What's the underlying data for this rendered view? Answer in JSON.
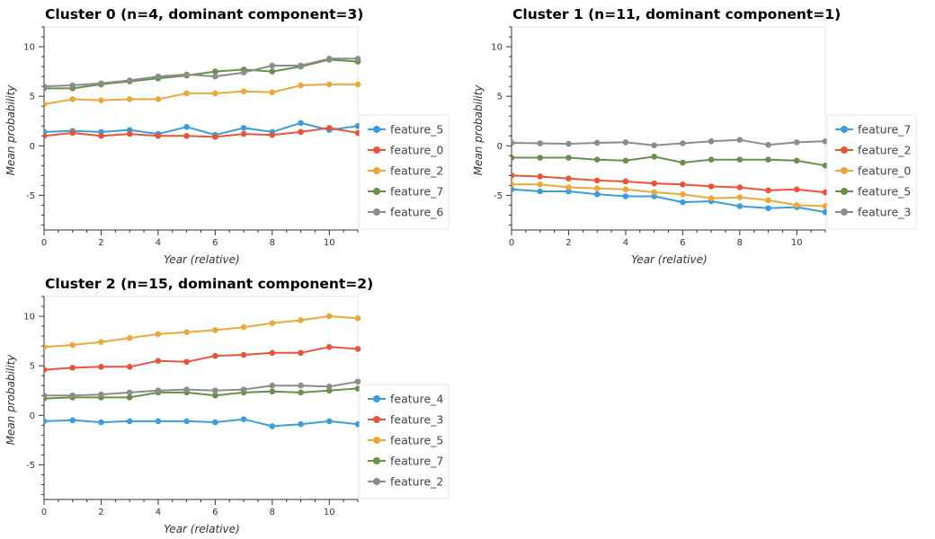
{
  "axis": {
    "xlabel": "Year (relative)",
    "ylabel": "Mean probability"
  },
  "colors": {
    "feature_0": "#e8543a",
    "feature_2": "#e9a93b",
    "feature_3": "#e8543a",
    "feature_4": "#3a9fd8",
    "feature_5": "#3a9fd8",
    "feature_6": "#8c8c8c",
    "feature_7": "#68904a"
  },
  "chart_data": [
    {
      "type": "line",
      "title": "Cluster 0  (n=4, dominant component=3)",
      "xlabel": "Year (relative)",
      "ylabel": "Mean probability",
      "xlim": [
        0,
        11
      ],
      "ylim": [
        -8.5,
        12
      ],
      "x_ticks": [
        0,
        2,
        4,
        6,
        8,
        10
      ],
      "y_ticks": [
        -5,
        0,
        5,
        10
      ],
      "x": [
        0,
        1,
        2,
        3,
        4,
        5,
        6,
        7,
        8,
        9,
        10,
        11
      ],
      "legend_position": "right",
      "series": [
        {
          "name": "feature_5",
          "color": "#3a9fd8",
          "values": [
            1.4,
            1.5,
            1.4,
            1.6,
            1.2,
            1.9,
            1.1,
            1.8,
            1.4,
            2.3,
            1.6,
            2.0
          ]
        },
        {
          "name": "feature_0",
          "color": "#e8543a",
          "values": [
            1.0,
            1.3,
            1.0,
            1.2,
            1.0,
            1.0,
            0.9,
            1.2,
            1.1,
            1.4,
            1.8,
            1.3
          ]
        },
        {
          "name": "feature_2",
          "color": "#e9a93b",
          "values": [
            4.2,
            4.7,
            4.6,
            4.7,
            4.7,
            5.3,
            5.3,
            5.5,
            5.4,
            6.1,
            6.2,
            6.2
          ]
        },
        {
          "name": "feature_7",
          "color": "#68904a",
          "values": [
            5.8,
            5.8,
            6.2,
            6.5,
            6.8,
            7.1,
            7.5,
            7.7,
            7.5,
            8.0,
            8.7,
            8.5
          ]
        },
        {
          "name": "feature_6",
          "color": "#8c8c8c",
          "values": [
            6.0,
            6.1,
            6.3,
            6.6,
            7.0,
            7.2,
            7.0,
            7.4,
            8.1,
            8.1,
            8.8,
            8.8
          ]
        }
      ]
    },
    {
      "type": "line",
      "title": "Cluster 1  (n=11, dominant component=1)",
      "xlabel": "Year (relative)",
      "ylabel": "Mean probability",
      "xlim": [
        0,
        11
      ],
      "ylim": [
        -8.5,
        12
      ],
      "x_ticks": [
        0,
        2,
        4,
        6,
        8,
        10
      ],
      "y_ticks": [
        -5,
        0,
        5,
        10
      ],
      "x": [
        0,
        1,
        2,
        3,
        4,
        5,
        6,
        7,
        8,
        9,
        10,
        11
      ],
      "legend_position": "right",
      "series": [
        {
          "name": "feature_7",
          "color": "#3a9fd8",
          "values": [
            -4.4,
            -4.6,
            -4.6,
            -4.9,
            -5.1,
            -5.1,
            -5.7,
            -5.6,
            -6.1,
            -6.3,
            -6.2,
            -6.7
          ]
        },
        {
          "name": "feature_2",
          "color": "#e8543a",
          "values": [
            -3.0,
            -3.1,
            -3.3,
            -3.5,
            -3.6,
            -3.8,
            -3.9,
            -4.1,
            -4.2,
            -4.5,
            -4.4,
            -4.7
          ]
        },
        {
          "name": "feature_0",
          "color": "#e9a93b",
          "values": [
            -3.9,
            -3.9,
            -4.2,
            -4.3,
            -4.4,
            -4.7,
            -4.9,
            -5.3,
            -5.2,
            -5.5,
            -6.0,
            -6.1
          ]
        },
        {
          "name": "feature_5",
          "color": "#68904a",
          "values": [
            -1.2,
            -1.2,
            -1.2,
            -1.4,
            -1.5,
            -1.1,
            -1.7,
            -1.4,
            -1.4,
            -1.4,
            -1.5,
            -2.0
          ]
        },
        {
          "name": "feature_3",
          "color": "#8c8c8c",
          "values": [
            0.3,
            0.25,
            0.2,
            0.3,
            0.35,
            0.05,
            0.25,
            0.45,
            0.6,
            0.1,
            0.35,
            0.45
          ]
        }
      ]
    },
    {
      "type": "line",
      "title": "Cluster 2  (n=15, dominant component=2)",
      "xlabel": "Year (relative)",
      "ylabel": "Mean probability",
      "xlim": [
        0,
        11
      ],
      "ylim": [
        -8.5,
        12
      ],
      "x_ticks": [
        0,
        2,
        4,
        6,
        8,
        10
      ],
      "y_ticks": [
        -5,
        0,
        5,
        10
      ],
      "x": [
        0,
        1,
        2,
        3,
        4,
        5,
        6,
        7,
        8,
        9,
        10,
        11
      ],
      "legend_position": "right",
      "series": [
        {
          "name": "feature_4",
          "color": "#3a9fd8",
          "values": [
            -0.6,
            -0.5,
            -0.7,
            -0.6,
            -0.6,
            -0.6,
            -0.7,
            -0.4,
            -1.1,
            -0.9,
            -0.6,
            -0.9
          ]
        },
        {
          "name": "feature_3",
          "color": "#e8543a",
          "values": [
            4.6,
            4.8,
            4.9,
            4.9,
            5.5,
            5.4,
            6.0,
            6.1,
            6.3,
            6.3,
            6.9,
            6.7
          ]
        },
        {
          "name": "feature_5",
          "color": "#e9a93b",
          "values": [
            6.9,
            7.1,
            7.4,
            7.8,
            8.2,
            8.4,
            8.6,
            8.9,
            9.3,
            9.6,
            10.0,
            9.8
          ]
        },
        {
          "name": "feature_7",
          "color": "#68904a",
          "values": [
            1.7,
            1.8,
            1.8,
            1.8,
            2.3,
            2.3,
            2.0,
            2.3,
            2.4,
            2.3,
            2.5,
            2.7
          ]
        },
        {
          "name": "feature_2",
          "color": "#8c8c8c",
          "values": [
            2.0,
            2.0,
            2.1,
            2.3,
            2.5,
            2.6,
            2.5,
            2.6,
            3.0,
            3.0,
            2.9,
            3.4
          ]
        }
      ]
    }
  ]
}
